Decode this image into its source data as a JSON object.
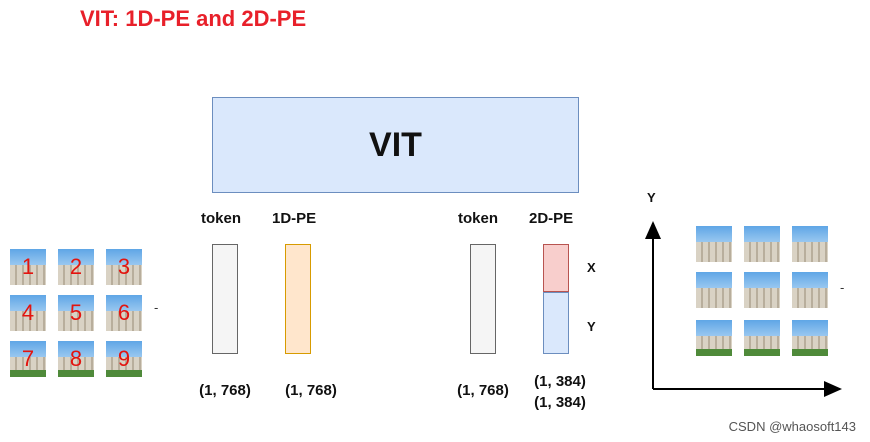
{
  "title": "VIT: 1D-PE and 2D-PE",
  "vit_label": "VIT",
  "left_group": {
    "token_label": "token",
    "pe_label": "1D-PE",
    "token_shape": "(1, 768)",
    "pe_shape": "(1, 768)"
  },
  "right_group": {
    "token_label": "token",
    "pe_label": "2D-PE",
    "token_shape": "(1, 768)",
    "x_label": "X",
    "y_label": "Y",
    "x_shape": "(1, 384)",
    "y_shape": "(1, 384)"
  },
  "patch_numbers": [
    "1",
    "2",
    "3",
    "4",
    "5",
    "6",
    "7",
    "8",
    "9"
  ],
  "grid_dash": "-",
  "axes": {
    "y_label": "Y",
    "dash": "-"
  },
  "watermark": "CSDN @whaosoft143",
  "colors": {
    "title": "#e8202a",
    "vit_fill": "#dae8fc",
    "pe1_fill": "#ffe6cc",
    "x_fill": "#f8cecc",
    "y_fill": "#dae8fc",
    "number": "#e3140f"
  }
}
